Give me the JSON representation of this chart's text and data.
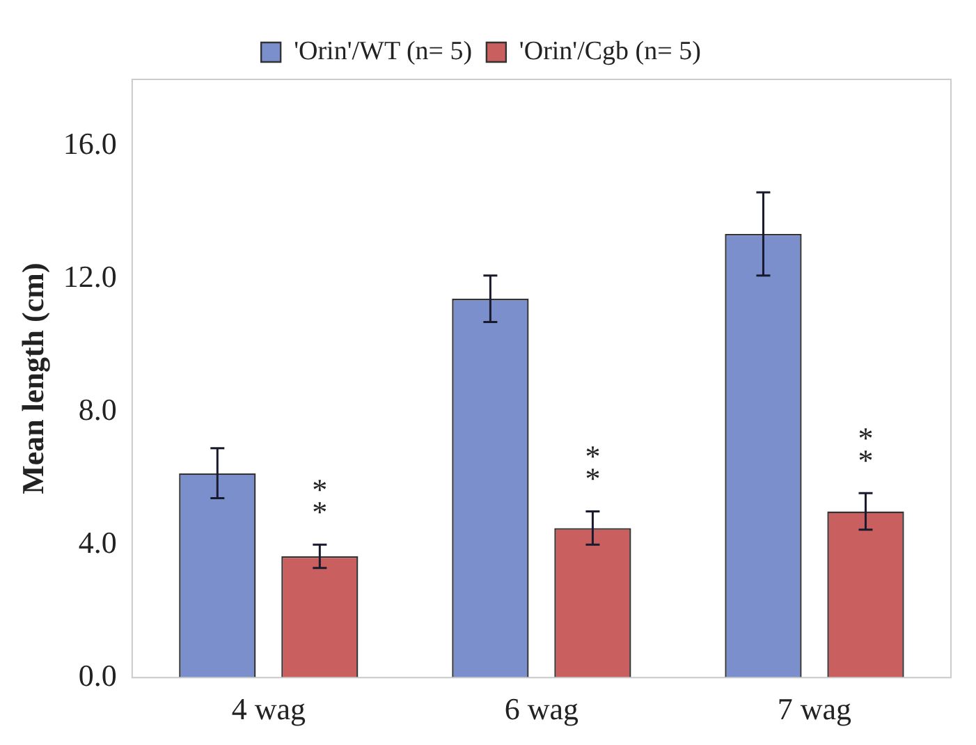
{
  "chart_data": {
    "type": "bar",
    "ylabel": "Mean length (cm)",
    "categories": [
      "4 wag",
      "6 wag",
      "7 wag"
    ],
    "series": [
      {
        "name": "'Orin'/WT (n= 5)",
        "color": "#7b8fcc",
        "values": [
          6.15,
          11.4,
          13.35
        ],
        "errors": [
          0.75,
          0.7,
          1.25
        ]
      },
      {
        "name": "'Orin'/Cgb (n= 5)",
        "color": "#c9605f",
        "values": [
          3.65,
          4.5,
          5.0
        ],
        "errors": [
          0.35,
          0.5,
          0.55
        ]
      }
    ],
    "ylim": [
      0,
      18
    ],
    "yticks": [
      {
        "value": 0,
        "label": "0.0"
      },
      {
        "value": 4,
        "label": "4.0"
      },
      {
        "value": 8,
        "label": "8.0"
      },
      {
        "value": 12,
        "label": "12.0"
      },
      {
        "value": 16,
        "label": "16.0"
      }
    ],
    "annotations": [
      "**",
      "**",
      "**"
    ],
    "grid": false,
    "legend": "top"
  }
}
